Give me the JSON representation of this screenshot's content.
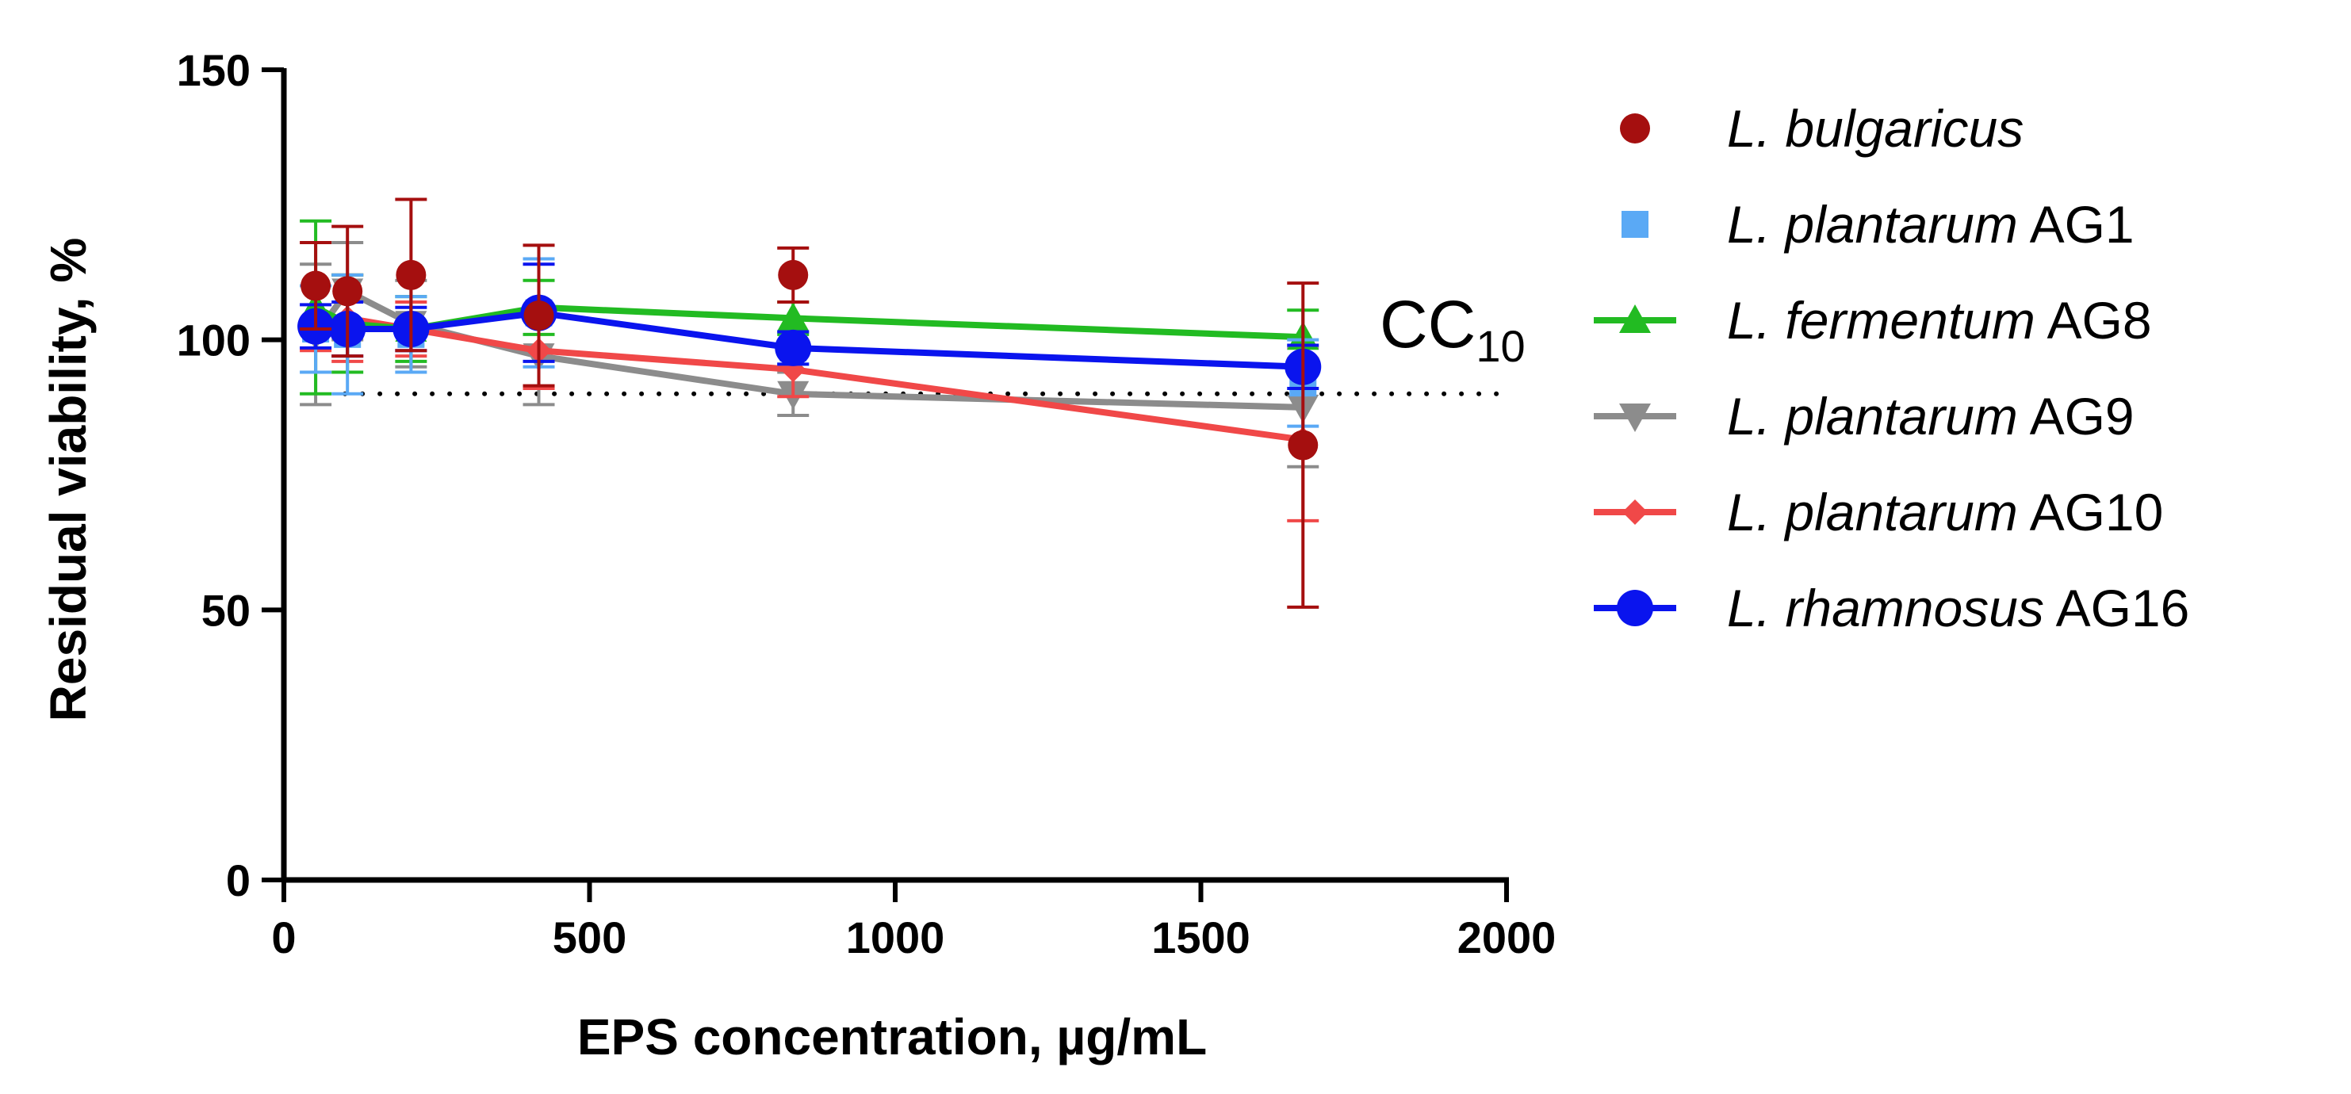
{
  "chart_data": {
    "type": "scatter",
    "xlabel": "EPS concentration, µg/mL",
    "ylabel": "Residual viability, %",
    "xlim": [
      0,
      2000
    ],
    "ylim": [
      0,
      150
    ],
    "xticks": [
      "0",
      "500",
      "1000",
      "1500",
      "2000"
    ],
    "yticks": [
      "0",
      "50",
      "100",
      "150"
    ],
    "grid": false,
    "legend_position": "right",
    "reference_line": {
      "y": 90,
      "label": "CC",
      "label_sub": "10",
      "style": "dotted"
    },
    "series": [
      {
        "name_italic": "L. bulgaricus",
        "name_rest": "",
        "color": "#a50f0f",
        "marker": "circle",
        "line": false,
        "points": [
          {
            "x": 52,
            "y": 110,
            "err": 8
          },
          {
            "x": 104,
            "y": 109,
            "err": 12
          },
          {
            "x": 208,
            "y": 112,
            "err": 14
          },
          {
            "x": 417,
            "y": 104.5,
            "err": 13
          },
          {
            "x": 833,
            "y": 112,
            "err": 5
          },
          {
            "x": 1667,
            "y": 80.5,
            "err": 30
          }
        ]
      },
      {
        "name_italic": "L. plantarum",
        "name_rest": " AG1",
        "color": "#5aa9f5",
        "marker": "square",
        "line": false,
        "points": [
          {
            "x": 52,
            "y": 102,
            "err": 8
          },
          {
            "x": 104,
            "y": 101,
            "err": 11
          },
          {
            "x": 208,
            "y": 101,
            "err": 7
          },
          {
            "x": 417,
            "y": 105,
            "err": 10
          },
          {
            "x": 833,
            "y": 98.5,
            "err": 3
          },
          {
            "x": 1667,
            "y": 92,
            "err": 8
          }
        ]
      },
      {
        "name_italic": "L. fermentum",
        "name_rest": " AG8",
        "color": "#22bb22",
        "marker": "triangle-up",
        "line": true,
        "points": [
          {
            "x": 52,
            "y": 106,
            "err": 16
          },
          {
            "x": 104,
            "y": 103,
            "err": 9
          },
          {
            "x": 208,
            "y": 102,
            "err": 6
          },
          {
            "x": 417,
            "y": 106,
            "err": 5
          },
          {
            "x": 833,
            "y": 104,
            "err": 3
          },
          {
            "x": 1667,
            "y": 100.5,
            "err": 5
          }
        ]
      },
      {
        "name_italic": "L. plantarum",
        "name_rest": " AG9",
        "color": "#8c8c8c",
        "marker": "triangle-down",
        "line": true,
        "points": [
          {
            "x": 52,
            "y": 101,
            "err": 13
          },
          {
            "x": 104,
            "y": 109,
            "err": 9
          },
          {
            "x": 208,
            "y": 103,
            "err": 8
          },
          {
            "x": 417,
            "y": 97,
            "err": 9
          },
          {
            "x": 833,
            "y": 90,
            "err": 4
          },
          {
            "x": 1667,
            "y": 87.5,
            "err": 11
          }
        ]
      },
      {
        "name_italic": "L. plantarum",
        "name_rest": " AG10",
        "color": "#f04848",
        "marker": "diamond",
        "line": true,
        "points": [
          {
            "x": 52,
            "y": 104,
            "err": 6
          },
          {
            "x": 104,
            "y": 104,
            "err": 8
          },
          {
            "x": 208,
            "y": 102,
            "err": 5
          },
          {
            "x": 417,
            "y": 98,
            "err": 7
          },
          {
            "x": 833,
            "y": 94.5,
            "err": 5
          },
          {
            "x": 1667,
            "y": 81.5,
            "err": 15
          }
        ]
      },
      {
        "name_italic": "L. rhamnosus",
        "name_rest": " AG16",
        "color": "#0a14ee",
        "marker": "circle-large",
        "line": true,
        "points": [
          {
            "x": 52,
            "y": 102.5,
            "err": 4
          },
          {
            "x": 104,
            "y": 102,
            "err": 5
          },
          {
            "x": 208,
            "y": 102,
            "err": 4
          },
          {
            "x": 417,
            "y": 105,
            "err": 9
          },
          {
            "x": 833,
            "y": 98.5,
            "err": 3
          },
          {
            "x": 1667,
            "y": 95,
            "err": 4
          }
        ]
      }
    ]
  }
}
